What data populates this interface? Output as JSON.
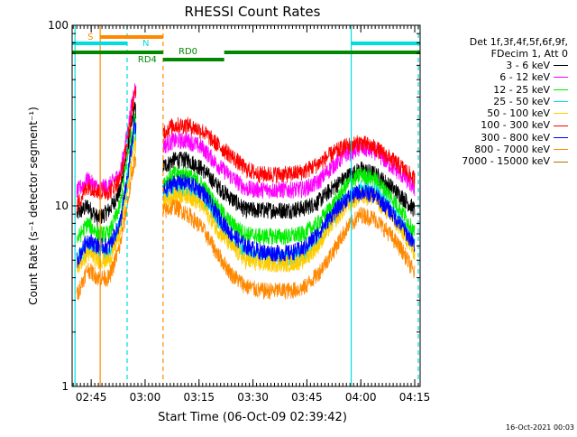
{
  "chart_data": {
    "type": "line",
    "title": "RHESSI Count Rates",
    "xlabel": "Start Time (06-Oct-09 02:39:42)",
    "ylabel": "Count Rate (s⁻¹ detector segment⁻¹)",
    "yscale": "log",
    "ylim": [
      1,
      100
    ],
    "xlim": [
      "02:39:42",
      "04:16:30"
    ],
    "x_ticks": [
      "02:45",
      "03:00",
      "03:15",
      "03:30",
      "03:45",
      "04:00",
      "04:15"
    ],
    "y_ticks": [
      "1",
      "10",
      "100"
    ],
    "grid": false,
    "legend_position": "right",
    "legend_header": [
      "Det 1f,3f,4f,5f,6f,9f,",
      "FDecim 1, Att 0"
    ],
    "series": [
      {
        "name": "3 - 6 keV",
        "color": "#000000",
        "x": [
          "02:41",
          "02:44",
          "02:47",
          "02:50",
          "02:53",
          "02:55",
          "02:57",
          "03:04",
          "03:08",
          "03:12",
          "03:16",
          "03:20",
          "03:24",
          "03:28",
          "03:32",
          "03:36",
          "03:40",
          "03:44",
          "03:48",
          "03:52",
          "03:56",
          "04:00",
          "04:04",
          "04:08",
          "04:12",
          "04:15"
        ],
        "values": [
          9,
          10,
          8.5,
          9.5,
          12,
          20,
          35,
          16,
          18,
          18,
          16,
          13,
          11,
          9.5,
          9.5,
          9.5,
          9.5,
          9.7,
          10.5,
          12.5,
          14.5,
          16,
          15,
          13,
          11,
          9.5
        ]
      },
      {
        "name": "6 - 12 keV",
        "color": "#ff00ff",
        "x": [
          "02:41",
          "02:44",
          "02:47",
          "02:50",
          "02:53",
          "02:55",
          "02:57",
          "03:04",
          "03:08",
          "03:12",
          "03:16",
          "03:20",
          "03:24",
          "03:28",
          "03:32",
          "03:36",
          "03:40",
          "03:44",
          "03:48",
          "03:52",
          "03:56",
          "04:00",
          "04:04",
          "04:08",
          "04:12",
          "04:15"
        ],
        "values": [
          12,
          14,
          12.5,
          13,
          15,
          25,
          45,
          21,
          23,
          23,
          21,
          17,
          14.5,
          12.5,
          12.3,
          12.3,
          12.3,
          12.4,
          13.5,
          16.5,
          19.5,
          21,
          20,
          17,
          14.5,
          12.5
        ]
      },
      {
        "name": "12 - 25 keV",
        "color": "#00ee00",
        "x": [
          "02:41",
          "02:44",
          "02:47",
          "02:50",
          "02:53",
          "02:55",
          "02:57",
          "03:04",
          "03:08",
          "03:12",
          "03:16",
          "03:20",
          "03:24",
          "03:28",
          "03:32",
          "03:36",
          "03:40",
          "03:44",
          "03:48",
          "03:52",
          "03:56",
          "04:00",
          "04:04",
          "04:08",
          "04:12",
          "04:15"
        ],
        "values": [
          6.5,
          8,
          7,
          7,
          10,
          18,
          30,
          13,
          15,
          15,
          13,
          10,
          8,
          7,
          6.8,
          6.8,
          6.8,
          7,
          8,
          10,
          13,
          15,
          14,
          11.5,
          9,
          7
        ]
      },
      {
        "name": "25 - 50 keV",
        "color": "#00dddd",
        "x": [
          "02:41",
          "02:44",
          "02:47",
          "02:50",
          "02:53",
          "02:55",
          "02:57",
          "03:04",
          "03:08",
          "03:12",
          "03:16",
          "03:20",
          "03:24",
          "03:28",
          "03:32",
          "03:36",
          "03:40",
          "03:44",
          "03:48",
          "03:52",
          "03:56",
          "04:00",
          "04:04",
          "04:08",
          "04:12",
          "04:15"
        ],
        "values": [
          5,
          6,
          5.5,
          5.5,
          8,
          14,
          26,
          11,
          12.5,
          12.5,
          11,
          8.5,
          6.5,
          5.5,
          5.3,
          5.2,
          5.2,
          5.4,
          6.5,
          8.5,
          11,
          12.5,
          12,
          10,
          7.5,
          6
        ]
      },
      {
        "name": "50 - 100 keV",
        "color": "#ffcc00",
        "x": [
          "02:41",
          "02:44",
          "02:47",
          "02:50",
          "02:53",
          "02:55",
          "02:57",
          "03:04",
          "03:08",
          "03:12",
          "03:16",
          "03:20",
          "03:24",
          "03:28",
          "03:32",
          "03:36",
          "03:40",
          "03:44",
          "03:48",
          "03:52",
          "03:56",
          "04:00",
          "04:04",
          "04:08",
          "04:12",
          "04:15"
        ],
        "values": [
          4.5,
          5.5,
          5,
          5,
          7,
          12,
          22,
          10,
          11.5,
          11.5,
          10,
          7.5,
          6,
          5,
          4.8,
          4.8,
          4.8,
          5,
          6,
          8,
          10,
          11.5,
          11,
          9,
          7,
          5.5
        ]
      },
      {
        "name": "100 - 300 keV",
        "color": "#ff0000",
        "x": [
          "02:41",
          "02:44",
          "02:47",
          "02:50",
          "02:53",
          "02:55",
          "02:57",
          "03:04",
          "03:08",
          "03:12",
          "03:16",
          "03:20",
          "03:24",
          "03:28",
          "03:32",
          "03:36",
          "03:40",
          "03:44",
          "03:48",
          "03:52",
          "03:56",
          "04:00",
          "04:04",
          "04:08",
          "04:12",
          "04:15"
        ],
        "values": [
          10,
          13,
          12,
          12,
          14,
          22,
          42,
          25,
          28,
          28,
          26,
          22,
          19,
          16,
          15,
          15,
          15,
          15.5,
          17,
          19.5,
          21.5,
          22.5,
          21,
          18.5,
          16,
          14
        ]
      },
      {
        "name": "300 - 800 keV",
        "color": "#0000ff",
        "x": [
          "02:41",
          "02:44",
          "02:47",
          "02:50",
          "02:53",
          "02:55",
          "02:57",
          "03:04",
          "03:08",
          "03:12",
          "03:16",
          "03:20",
          "03:24",
          "03:28",
          "03:32",
          "03:36",
          "03:40",
          "03:44",
          "03:48",
          "03:52",
          "03:56",
          "04:00",
          "04:04",
          "04:08",
          "04:12",
          "04:15"
        ],
        "values": [
          5,
          6.5,
          6,
          6,
          8,
          14,
          28,
          11.5,
          13.5,
          13.5,
          12,
          9,
          7,
          6,
          5.6,
          5.5,
          5.5,
          5.8,
          7,
          9,
          11,
          12,
          11.5,
          9.5,
          7.5,
          6
        ]
      },
      {
        "name": "800 - 7000 keV",
        "color": "#ff8800",
        "x": [
          "02:41",
          "02:44",
          "02:47",
          "02:50",
          "02:53",
          "02:55",
          "02:57",
          "03:04",
          "03:08",
          "03:12",
          "03:16",
          "03:20",
          "03:24",
          "03:28",
          "03:32",
          "03:36",
          "03:40",
          "03:44",
          "03:48",
          "03:52",
          "03:56",
          "04:00",
          "04:04",
          "04:08",
          "04:12",
          "04:15"
        ],
        "values": [
          3.2,
          4.5,
          4,
          4,
          6,
          10,
          18,
          9,
          10,
          9,
          7.5,
          5.5,
          4.2,
          3.6,
          3.4,
          3.4,
          3.4,
          3.5,
          4.2,
          5.5,
          7.5,
          9,
          8.5,
          7,
          5.5,
          4.2
        ]
      }
    ],
    "markers": [
      {
        "label": "S",
        "color": "#ff8800",
        "start": "02:47:30",
        "end": "03:05:00",
        "level": 0
      },
      {
        "label": "N",
        "color": "#00dddd",
        "start": "02:39:42",
        "end": "02:55:00",
        "level": 1
      },
      {
        "label": "N",
        "color": "#00dddd",
        "start": "03:57:20",
        "end": "04:16:30",
        "level": 1
      },
      {
        "label": "RD0",
        "color": "#008800",
        "start": "02:39:42",
        "end": "03:05:00",
        "level": 2
      },
      {
        "label": "RD0",
        "color": "#008800",
        "start": "03:22:00",
        "end": "04:16:30",
        "level": 2
      },
      {
        "label": "RD4",
        "color": "#008800",
        "start": "03:05:00",
        "end": "03:22:00",
        "level": 3
      }
    ],
    "vlines": [
      {
        "x": "02:47:30",
        "color": "#ff8800",
        "style": "solid"
      },
      {
        "x": "02:40:30",
        "color": "#00dddd",
        "style": "solid"
      },
      {
        "x": "02:55:00",
        "color": "#00dddd",
        "style": "dashed"
      },
      {
        "x": "03:05:00",
        "color": "#ff8800",
        "style": "dashed"
      },
      {
        "x": "03:57:20",
        "color": "#00dddd",
        "style": "solid"
      },
      {
        "x": "04:16:00",
        "color": "#00dddd",
        "style": "dashed"
      }
    ]
  },
  "footer": {
    "timestamp": "16-Oct-2021 00:03"
  }
}
